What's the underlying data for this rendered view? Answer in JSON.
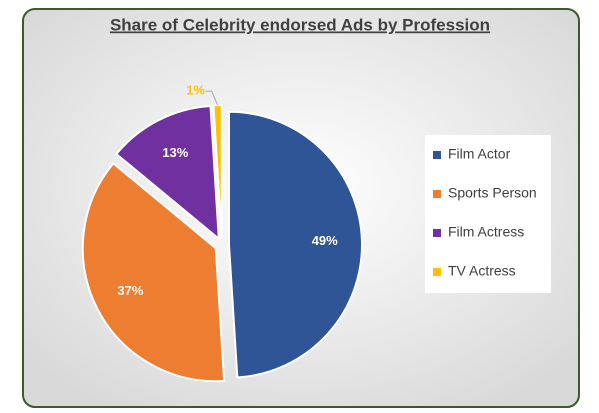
{
  "chart_data": {
    "type": "pie",
    "title": "Share of Celebrity endorsed Ads by Profession",
    "categories": [
      "Film Actor",
      "Sports Person",
      "Film Actress",
      "TV Actress"
    ],
    "values": [
      49,
      37,
      13,
      1
    ],
    "value_labels": [
      "49%",
      "37%",
      "13%",
      "1%"
    ],
    "colors": [
      "#2f5597",
      "#ed7d31",
      "#7030a0",
      "#ffc000"
    ],
    "legend": "right"
  }
}
